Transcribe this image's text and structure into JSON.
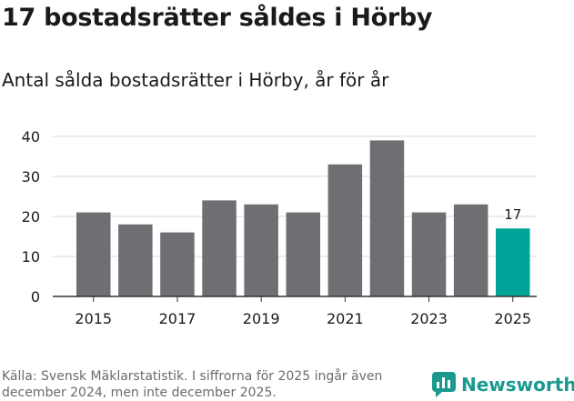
{
  "chart_data": {
    "type": "bar",
    "title": "17 bostadsrätter såldes i Hörby",
    "subtitle": "Antal sålda bostadsrätter i Hörby, år för år",
    "categories": [
      "2015",
      "2016",
      "2017",
      "2018",
      "2019",
      "2020",
      "2021",
      "2022",
      "2023",
      "2024",
      "2025"
    ],
    "values": [
      21,
      18,
      16,
      24,
      23,
      21,
      33,
      39,
      21,
      23,
      17
    ],
    "x_tick_labels": [
      "2015",
      "2017",
      "2019",
      "2021",
      "2023",
      "2025"
    ],
    "y_ticks": [
      0,
      10,
      20,
      30,
      40
    ],
    "ylim": [
      0,
      40
    ],
    "grid": true,
    "highlight_index": 10,
    "highlight_label": "17",
    "colors": {
      "bar": "#6f6e73",
      "highlight": "#00a499",
      "grid": "#d9d9d9",
      "axis": "#333333"
    }
  },
  "source": "Källa: Svensk Mäklarstatistik. I siffrorna för 2025 ingår även december 2024, men inte december 2025.",
  "brand": {
    "name": "Newsworthy",
    "color": "#1a9a8f",
    "icon": "newsworthy-logo-icon"
  }
}
